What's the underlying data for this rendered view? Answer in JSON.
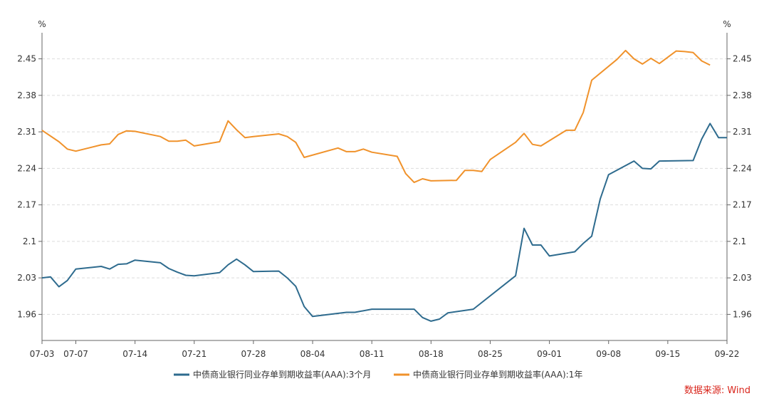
{
  "chart_data": {
    "type": "line",
    "title": "",
    "y_unit_left": "%",
    "y_unit_right": "%",
    "ylim": [
      1.91,
      2.5
    ],
    "yticks": [
      1.96,
      2.03,
      2.1,
      2.17,
      2.24,
      2.31,
      2.38,
      2.45
    ],
    "ytick_labels": [
      "1.96",
      "2.03",
      "2.1",
      "2.17",
      "2.24",
      "2.31",
      "2.38",
      "2.45"
    ],
    "x_range": [
      0,
      81
    ],
    "xticks": [
      0,
      4,
      11,
      18,
      25,
      32,
      39,
      46,
      53,
      60,
      67,
      74,
      81
    ],
    "xtick_labels": [
      "07-03",
      "07-07",
      "07-14",
      "07-21",
      "07-28",
      "08-04",
      "08-11",
      "08-18",
      "08-25",
      "09-01",
      "09-08",
      "09-15",
      "09-22"
    ],
    "grid": "horizontal dashed",
    "series": [
      {
        "name": "中债商业银行同业存单到期收益率(AAA):3个月",
        "color": "#2e6b8e",
        "points": [
          [
            0,
            2.03
          ],
          [
            1,
            2.032
          ],
          [
            2,
            2.013
          ],
          [
            3,
            2.025
          ],
          [
            4,
            2.047
          ],
          [
            7,
            2.052
          ],
          [
            8,
            2.047
          ],
          [
            9,
            2.056
          ],
          [
            10,
            2.057
          ],
          [
            11,
            2.064
          ],
          [
            14,
            2.059
          ],
          [
            15,
            2.048
          ],
          [
            16,
            2.041
          ],
          [
            17,
            2.035
          ],
          [
            18,
            2.034
          ],
          [
            21,
            2.04
          ],
          [
            22,
            2.055
          ],
          [
            23,
            2.066
          ],
          [
            24,
            2.055
          ],
          [
            25,
            2.042
          ],
          [
            28,
            2.043
          ],
          [
            29,
            2.03
          ],
          [
            30,
            2.014
          ],
          [
            31,
            1.975
          ],
          [
            32,
            1.956
          ],
          [
            36,
            1.964
          ],
          [
            37,
            1.964
          ],
          [
            39,
            1.97
          ],
          [
            44,
            1.97
          ],
          [
            45,
            1.954
          ],
          [
            46,
            1.947
          ],
          [
            47,
            1.951
          ],
          [
            48,
            1.963
          ],
          [
            51,
            1.97
          ],
          [
            56,
            2.034
          ],
          [
            57,
            2.125
          ],
          [
            58,
            2.093
          ],
          [
            59,
            2.093
          ],
          [
            60,
            2.072
          ],
          [
            63,
            2.08
          ],
          [
            64,
            2.096
          ],
          [
            65,
            2.11
          ],
          [
            66,
            2.181
          ],
          [
            67,
            2.228
          ],
          [
            70,
            2.254
          ],
          [
            71,
            2.24
          ],
          [
            72,
            2.239
          ],
          [
            73,
            2.254
          ],
          [
            77,
            2.255
          ],
          [
            78,
            2.296
          ],
          [
            79,
            2.326
          ],
          [
            80,
            2.299
          ],
          [
            81,
            2.299
          ]
        ]
      },
      {
        "name": "中债商业银行同业存单到期收益率(AAA):1年",
        "color": "#f0922b",
        "points": [
          [
            0,
            2.313
          ],
          [
            2,
            2.291
          ],
          [
            3,
            2.277
          ],
          [
            4,
            2.273
          ],
          [
            7,
            2.285
          ],
          [
            8,
            2.287
          ],
          [
            9,
            2.305
          ],
          [
            10,
            2.312
          ],
          [
            11,
            2.311
          ],
          [
            14,
            2.301
          ],
          [
            15,
            2.292
          ],
          [
            16,
            2.292
          ],
          [
            17,
            2.294
          ],
          [
            18,
            2.283
          ],
          [
            21,
            2.291
          ],
          [
            22,
            2.331
          ],
          [
            23,
            2.314
          ],
          [
            24,
            2.299
          ],
          [
            25,
            2.301
          ],
          [
            28,
            2.306
          ],
          [
            29,
            2.301
          ],
          [
            30,
            2.29
          ],
          [
            31,
            2.261
          ],
          [
            35,
            2.279
          ],
          [
            36,
            2.272
          ],
          [
            37,
            2.272
          ],
          [
            38,
            2.277
          ],
          [
            39,
            2.271
          ],
          [
            42,
            2.263
          ],
          [
            43,
            2.23
          ],
          [
            44,
            2.213
          ],
          [
            45,
            2.22
          ],
          [
            46,
            2.216
          ],
          [
            49,
            2.217
          ],
          [
            50,
            2.236
          ],
          [
            51,
            2.236
          ],
          [
            52,
            2.234
          ],
          [
            53,
            2.257
          ],
          [
            56,
            2.29
          ],
          [
            57,
            2.307
          ],
          [
            58,
            2.286
          ],
          [
            59,
            2.283
          ],
          [
            62,
            2.313
          ],
          [
            63,
            2.313
          ],
          [
            64,
            2.347
          ],
          [
            65,
            2.409
          ],
          [
            68,
            2.449
          ],
          [
            69,
            2.466
          ],
          [
            70,
            2.45
          ],
          [
            71,
            2.44
          ],
          [
            72,
            2.451
          ],
          [
            73,
            2.441
          ],
          [
            75,
            2.465
          ],
          [
            76,
            2.464
          ],
          [
            77,
            2.462
          ],
          [
            78,
            2.446
          ],
          [
            79,
            2.438
          ]
        ]
      }
    ]
  },
  "source_note": "数据来源: Wind"
}
